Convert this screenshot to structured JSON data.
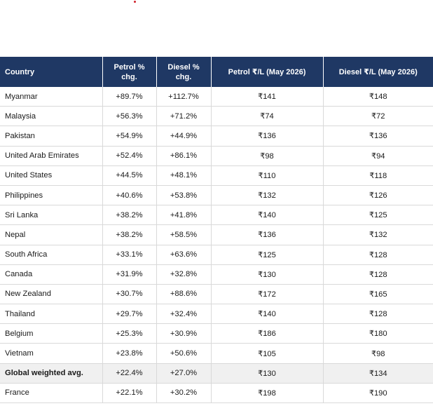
{
  "table": {
    "headers": [
      "Country",
      "Petrol % chg.",
      "Diesel % chg.",
      "Petrol ₹/L (May 2026)",
      "Diesel ₹/L (May 2026)"
    ],
    "rows": [
      {
        "country": "Myanmar",
        "petrol_chg": "+89.7%",
        "diesel_chg": "+112.7%",
        "petrol_price": "₹141",
        "diesel_price": "₹148"
      },
      {
        "country": "Malaysia",
        "petrol_chg": "+56.3%",
        "diesel_chg": "+71.2%",
        "petrol_price": "₹74",
        "diesel_price": "₹72"
      },
      {
        "country": "Pakistan",
        "petrol_chg": "+54.9%",
        "diesel_chg": "+44.9%",
        "petrol_price": "₹136",
        "diesel_price": "₹136"
      },
      {
        "country": "United Arab Emirates",
        "petrol_chg": "+52.4%",
        "diesel_chg": "+86.1%",
        "petrol_price": "₹98",
        "diesel_price": "₹94"
      },
      {
        "country": "United States",
        "petrol_chg": "+44.5%",
        "diesel_chg": "+48.1%",
        "petrol_price": "₹110",
        "diesel_price": "₹118"
      },
      {
        "country": "Philippines",
        "petrol_chg": "+40.6%",
        "diesel_chg": "+53.8%",
        "petrol_price": "₹132",
        "diesel_price": "₹126"
      },
      {
        "country": "Sri Lanka",
        "petrol_chg": "+38.2%",
        "diesel_chg": "+41.8%",
        "petrol_price": "₹140",
        "diesel_price": "₹125"
      },
      {
        "country": "Nepal",
        "petrol_chg": "+38.2%",
        "diesel_chg": "+58.5%",
        "petrol_price": "₹136",
        "diesel_price": "₹132"
      },
      {
        "country": "South Africa",
        "petrol_chg": "+33.1%",
        "diesel_chg": "+63.6%",
        "petrol_price": "₹125",
        "diesel_price": "₹128"
      },
      {
        "country": "Canada",
        "petrol_chg": "+31.9%",
        "diesel_chg": "+32.8%",
        "petrol_price": "₹130",
        "diesel_price": "₹128"
      },
      {
        "country": "New Zealand",
        "petrol_chg": "+30.7%",
        "diesel_chg": "+88.6%",
        "petrol_price": "₹172",
        "diesel_price": "₹165"
      },
      {
        "country": "Thailand",
        "petrol_chg": "+29.7%",
        "diesel_chg": "+32.4%",
        "petrol_price": "₹140",
        "diesel_price": "₹128"
      },
      {
        "country": "Belgium",
        "petrol_chg": "+25.3%",
        "diesel_chg": "+30.9%",
        "petrol_price": "₹186",
        "diesel_price": "₹180"
      },
      {
        "country": "Vietnam",
        "petrol_chg": "+23.8%",
        "diesel_chg": "+50.6%",
        "petrol_price": "₹105",
        "diesel_price": "₹98"
      },
      {
        "country": "Global weighted avg.",
        "petrol_chg": "+22.4%",
        "diesel_chg": "+27.0%",
        "petrol_price": "₹130",
        "diesel_price": "₹134",
        "highlight": true
      },
      {
        "country": "France",
        "petrol_chg": "+22.1%",
        "diesel_chg": "+30.2%",
        "petrol_price": "₹198",
        "diesel_price": "₹190"
      }
    ]
  },
  "colors": {
    "header_bg": "#1f3864",
    "highlight_row_bg": "#f0f0f0",
    "accent_dot": "#d0202a"
  }
}
